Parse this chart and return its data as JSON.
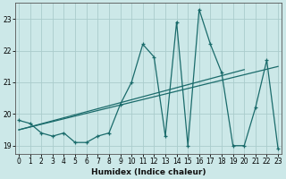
{
  "xlabel": "Humidex (Indice chaleur)",
  "background_color": "#cce8e8",
  "grid_color": "#aacccc",
  "line_color": "#1a6b6b",
  "x_data": [
    0,
    1,
    2,
    3,
    4,
    5,
    6,
    7,
    8,
    9,
    10,
    11,
    12,
    13,
    14,
    15,
    16,
    17,
    18,
    19,
    20,
    21,
    22,
    23
  ],
  "y_main": [
    19.8,
    19.7,
    19.4,
    19.3,
    19.4,
    19.1,
    19.1,
    19.3,
    19.4,
    20.3,
    21.0,
    22.2,
    21.8,
    19.3,
    22.9,
    19.0,
    23.3,
    22.2,
    21.3,
    19.0,
    19.0,
    20.2,
    21.7,
    18.9
  ],
  "trend1_x": [
    0,
    23
  ],
  "trend1_y": [
    19.5,
    21.5
  ],
  "trend2_x": [
    0,
    20
  ],
  "trend2_y": [
    19.5,
    21.4
  ],
  "ylim": [
    18.75,
    23.5
  ],
  "xlim": [
    -0.3,
    23.3
  ],
  "yticks": [
    19,
    20,
    21,
    22,
    23
  ],
  "xticks": [
    0,
    1,
    2,
    3,
    4,
    5,
    6,
    7,
    8,
    9,
    10,
    11,
    12,
    13,
    14,
    15,
    16,
    17,
    18,
    19,
    20,
    21,
    22,
    23
  ],
  "tick_fontsize": 5.5,
  "xlabel_fontsize": 6.5
}
